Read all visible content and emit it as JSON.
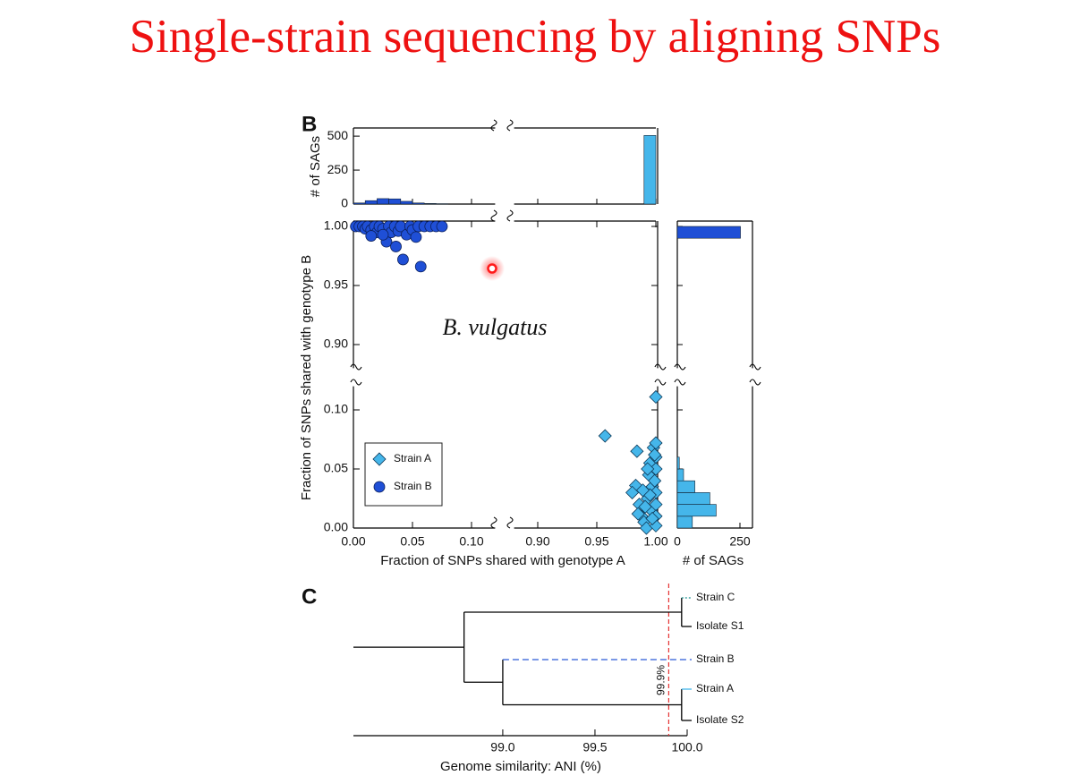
{
  "title": "Single-strain sequencing by aligning SNPs",
  "chart_data": {
    "type": "scatter",
    "panel_label": "B",
    "annotation": "B. vulgatus",
    "x_label": "Fraction of SNPs shared with genotype A",
    "y_label": "Fraction of SNPs shared with genotype B",
    "x_segments": [
      [
        0,
        0.12
      ],
      [
        0.88,
        1.0
      ]
    ],
    "y_segments": [
      [
        0,
        0.12
      ],
      [
        0.88,
        1.0
      ]
    ],
    "xticks": [
      {
        "value": 0,
        "label": "0.00"
      },
      {
        "value": 0.05,
        "label": "0.05"
      },
      {
        "value": 0.1,
        "label": "0.10"
      },
      {
        "value": 0.9,
        "label": "0.90"
      },
      {
        "value": 0.95,
        "label": "0.95"
      },
      {
        "value": 1,
        "label": "1.00"
      }
    ],
    "yticks": [
      {
        "value": 0,
        "label": "0.00"
      },
      {
        "value": 0.05,
        "label": "0.05"
      },
      {
        "value": 0.1,
        "label": "0.10"
      },
      {
        "value": 0.9,
        "label": "0.90"
      },
      {
        "value": 0.95,
        "label": "0.95"
      },
      {
        "value": 1,
        "label": "1.00"
      }
    ],
    "legend": "lower left",
    "series": [
      {
        "name": "Strain A",
        "marker": "diamond",
        "color": "#45b6ea",
        "x": [
          0.957,
          1.0,
          0.984,
          0.983,
          0.98,
          0.986,
          0.988,
          0.99,
          0.992,
          0.993,
          0.994,
          0.995,
          0.996,
          0.997,
          0.998,
          0.999,
          1.0,
          1.0,
          1.0,
          1.0,
          1.0,
          1.0,
          1.0,
          0.995,
          0.991,
          0.997,
          0.999,
          0.993,
          0.989,
          0.985
        ],
        "values": [
          0.078,
          0.111,
          0.065,
          0.036,
          0.03,
          0.02,
          0.01,
          0.005,
          0,
          0.025,
          0.045,
          0.055,
          0.015,
          0.035,
          0.068,
          0.04,
          0.072,
          0.06,
          0.05,
          0.03,
          0.02,
          0.01,
          0.002,
          0.028,
          0.018,
          0.008,
          0.062,
          0.05,
          0.032,
          0.012
        ]
      },
      {
        "name": "Strain B",
        "marker": "circle",
        "color": "#1f4fd6",
        "x": [
          0.002,
          0.005,
          0.008,
          0.01,
          0.012,
          0.015,
          0.018,
          0.02,
          0.022,
          0.025,
          0.028,
          0.03,
          0.032,
          0.035,
          0.036,
          0.038,
          0.04,
          0.042,
          0.045,
          0.048,
          0.05,
          0.053,
          0.055,
          0.057,
          0.06,
          0.065,
          0.07,
          0.075,
          0.025,
          0.015
        ],
        "values": [
          1.0,
          1.0,
          1.0,
          0.998,
          1.0,
          0.997,
          1.0,
          0.995,
          1.0,
          0.998,
          0.987,
          1.0,
          0.995,
          1.0,
          0.983,
          0.996,
          1.0,
          0.972,
          0.993,
          1.0,
          0.997,
          0.991,
          1.0,
          0.966,
          1.0,
          1.0,
          1.0,
          1.0,
          0.993,
          0.992
        ]
      }
    ],
    "top_histogram": {
      "y_label": "# of SAGs",
      "ylim": [
        0,
        560
      ],
      "yticks": [
        0,
        250,
        500
      ],
      "series": [
        {
          "color": "#1f4fd6",
          "bins": [
            0,
            0.01,
            0.02,
            0.03,
            0.04,
            0.05,
            0.06,
            0.07,
            0.08
          ],
          "counts": [
            8,
            25,
            40,
            38,
            20,
            8,
            4,
            2
          ]
        },
        {
          "color": "#45b6ea",
          "bins": [
            0.99,
            1.0
          ],
          "counts": [
            505
          ]
        }
      ]
    },
    "right_histogram": {
      "x_label": "# of SAGs",
      "xlim": [
        0,
        300
      ],
      "xticks": [
        0,
        250
      ],
      "series": [
        {
          "color": "#1f4fd6",
          "bins": [
            0.99,
            1.0
          ],
          "counts": [
            252
          ]
        },
        {
          "color": "#45b6ea",
          "bins": [
            0,
            0.01,
            0.02,
            0.03,
            0.04,
            0.05,
            0.06
          ],
          "counts": [
            60,
            155,
            130,
            70,
            25,
            8
          ]
        }
      ]
    }
  },
  "tree": {
    "panel_label": "C",
    "x_label": "Genome similarity: ANI (%)",
    "xlim": [
      98.19,
      100.0
    ],
    "xticks": [
      {
        "value": 99,
        "label": "99.0"
      },
      {
        "value": 99.5,
        "label": "99.5"
      },
      {
        "value": 100,
        "label": "100.0"
      }
    ],
    "threshold": {
      "value": 99.9,
      "label": "99.9%",
      "color": "#e53030"
    },
    "root": {
      "ani": 98.79,
      "children": [
        {
          "ani": 99.97,
          "children": [
            {
              "label": "Strain C",
              "ani": 100.0,
              "color": "#16908f",
              "line": "dotted"
            },
            {
              "label": "Isolate S1",
              "ani": 100.0,
              "color": "#000000",
              "line": "solid"
            }
          ]
        },
        {
          "ani": 99.0,
          "children": [
            {
              "label": "Strain B",
              "ani": 100.0,
              "color": "#2a5bd7",
              "line": "dashed"
            },
            {
              "ani": 99.97,
              "children": [
                {
                  "label": "Strain A",
                  "ani": 100.0,
                  "color": "#45b6ea",
                  "line": "solid"
                },
                {
                  "label": "Isolate S2",
                  "ani": 100.0,
                  "color": "#000000",
                  "line": "solid"
                }
              ]
            }
          ]
        }
      ]
    }
  }
}
